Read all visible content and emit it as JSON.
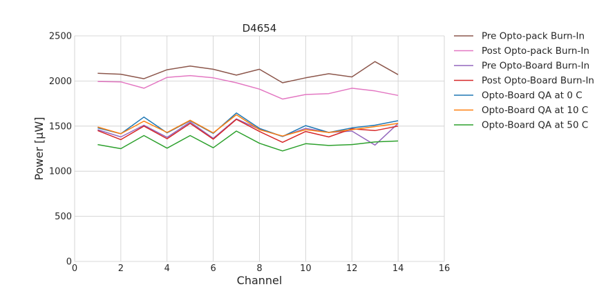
{
  "chart_data": {
    "type": "line",
    "title": "D4654",
    "xlabel": "Channel",
    "ylabel": "Power [μW]",
    "xlim": [
      0,
      16
    ],
    "ylim": [
      0,
      2500
    ],
    "xticks": [
      0,
      2,
      4,
      6,
      8,
      10,
      12,
      14,
      16
    ],
    "yticks": [
      0,
      500,
      1000,
      1500,
      2000,
      2500
    ],
    "grid": true,
    "legend_placement": "outside right",
    "x": [
      1,
      2,
      3,
      4,
      5,
      6,
      7,
      8,
      9,
      10,
      11,
      12,
      13,
      14
    ],
    "series": [
      {
        "name": "Pre Opto-pack Burn-In",
        "color": "#8c564b",
        "values": [
          2085,
          2075,
          2025,
          2125,
          2165,
          2130,
          2065,
          2130,
          1980,
          2035,
          2080,
          2045,
          2215,
          2070
        ]
      },
      {
        "name": "Post Opto-pack Burn-In",
        "color": "#e377c2",
        "values": [
          1995,
          1990,
          1920,
          2040,
          2060,
          2035,
          1980,
          1910,
          1800,
          1850,
          1860,
          1920,
          1890,
          1840
        ]
      },
      {
        "name": "Pre Opto-Board Burn-In",
        "color": "#9467bd",
        "values": [
          1460,
          1380,
          1510,
          1375,
          1545,
          1365,
          1580,
          1465,
          1385,
          1475,
          1430,
          1445,
          1290,
          1530
        ]
      },
      {
        "name": "Post Opto-Board Burn-In",
        "color": "#d62728",
        "values": [
          1450,
          1350,
          1500,
          1360,
          1530,
          1355,
          1575,
          1440,
          1320,
          1440,
          1380,
          1470,
          1450,
          1500
        ]
      },
      {
        "name": "Opto-Board QA at 0 C",
        "color": "#1f77b4",
        "values": [
          1480,
          1415,
          1600,
          1425,
          1560,
          1420,
          1645,
          1475,
          1385,
          1505,
          1430,
          1480,
          1510,
          1560
        ]
      },
      {
        "name": "Opto-Board QA at 10 C",
        "color": "#ff7f0e",
        "values": [
          1490,
          1415,
          1555,
          1430,
          1565,
          1425,
          1625,
          1460,
          1390,
          1460,
          1430,
          1460,
          1495,
          1530
        ]
      },
      {
        "name": "Opto-Board QA at 50 C",
        "color": "#2ca02c",
        "values": [
          1295,
          1250,
          1395,
          1255,
          1395,
          1260,
          1445,
          1310,
          1225,
          1305,
          1285,
          1295,
          1325,
          1335
        ]
      }
    ]
  }
}
